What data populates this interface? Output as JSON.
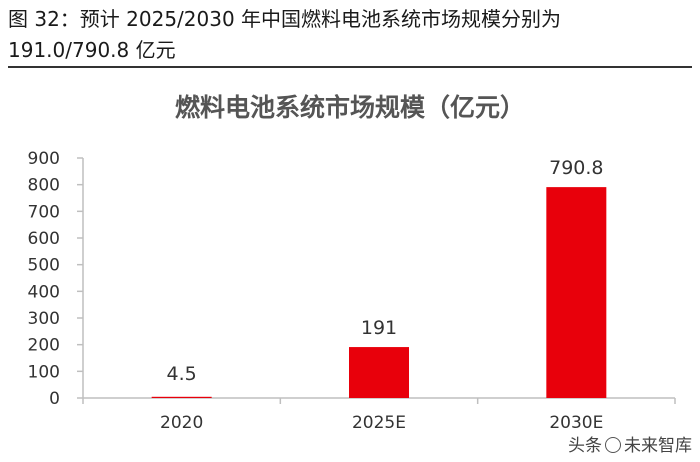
{
  "caption": {
    "line1": "图 32：预计 2025/2030 年中国燃料电池系统市场规模分别为",
    "line2": "191.0/790.8 亿元"
  },
  "watermark": {
    "text_left": "头条",
    "text_right": "未来智库"
  },
  "colors": {
    "bar": "#e8000b",
    "axis": "#bfbfbf",
    "text": "#333333"
  },
  "chart_data": {
    "type": "bar",
    "title": "燃料电池系统市场规模（亿元）",
    "categories": [
      "2020",
      "2025E",
      "2030E"
    ],
    "values": [
      4.5,
      191,
      790.8
    ],
    "data_labels": [
      "4.5",
      "191",
      "790.8"
    ],
    "yticks": [
      "0",
      "100",
      "200",
      "300",
      "400",
      "500",
      "600",
      "700",
      "800",
      "900"
    ],
    "ylim": [
      0,
      900
    ],
    "grid": false,
    "legend": "none"
  }
}
